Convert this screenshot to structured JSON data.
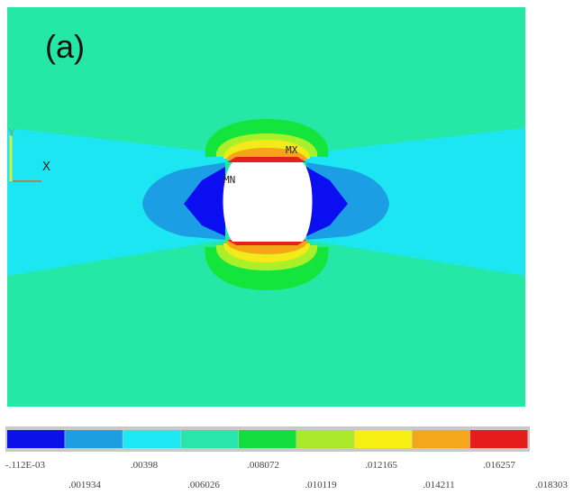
{
  "panel": {
    "label": "(a)"
  },
  "axes": {
    "x_label": "X",
    "y_label": "Y"
  },
  "markers": {
    "max": "MX",
    "min": "MN"
  },
  "colors": {
    "background_field": "#25e8a6",
    "light_blue": "#1de6f3",
    "medium_blue": "#1c9ee5",
    "dark_blue": "#0a0ef1",
    "green": "#13e53c",
    "yellow_green": "#a9f02a",
    "yellow": "#f3ea19",
    "orange": "#f5a51a",
    "red": "#e4211d",
    "hole": "#ffffff"
  },
  "legend": {
    "colors": [
      "#0a12e9",
      "#1d9ee3",
      "#1de8f4",
      "#2ae6ad",
      "#14de3d",
      "#a9e92a",
      "#f7ef11",
      "#f5a71b",
      "#e51c1c"
    ],
    "upper_ticks": [
      "-.112E-03",
      ".00398",
      ".008072",
      ".012165",
      ".016257"
    ],
    "lower_ticks": [
      ".001934",
      ".006026",
      ".010119",
      ".014211",
      ".018303"
    ]
  }
}
